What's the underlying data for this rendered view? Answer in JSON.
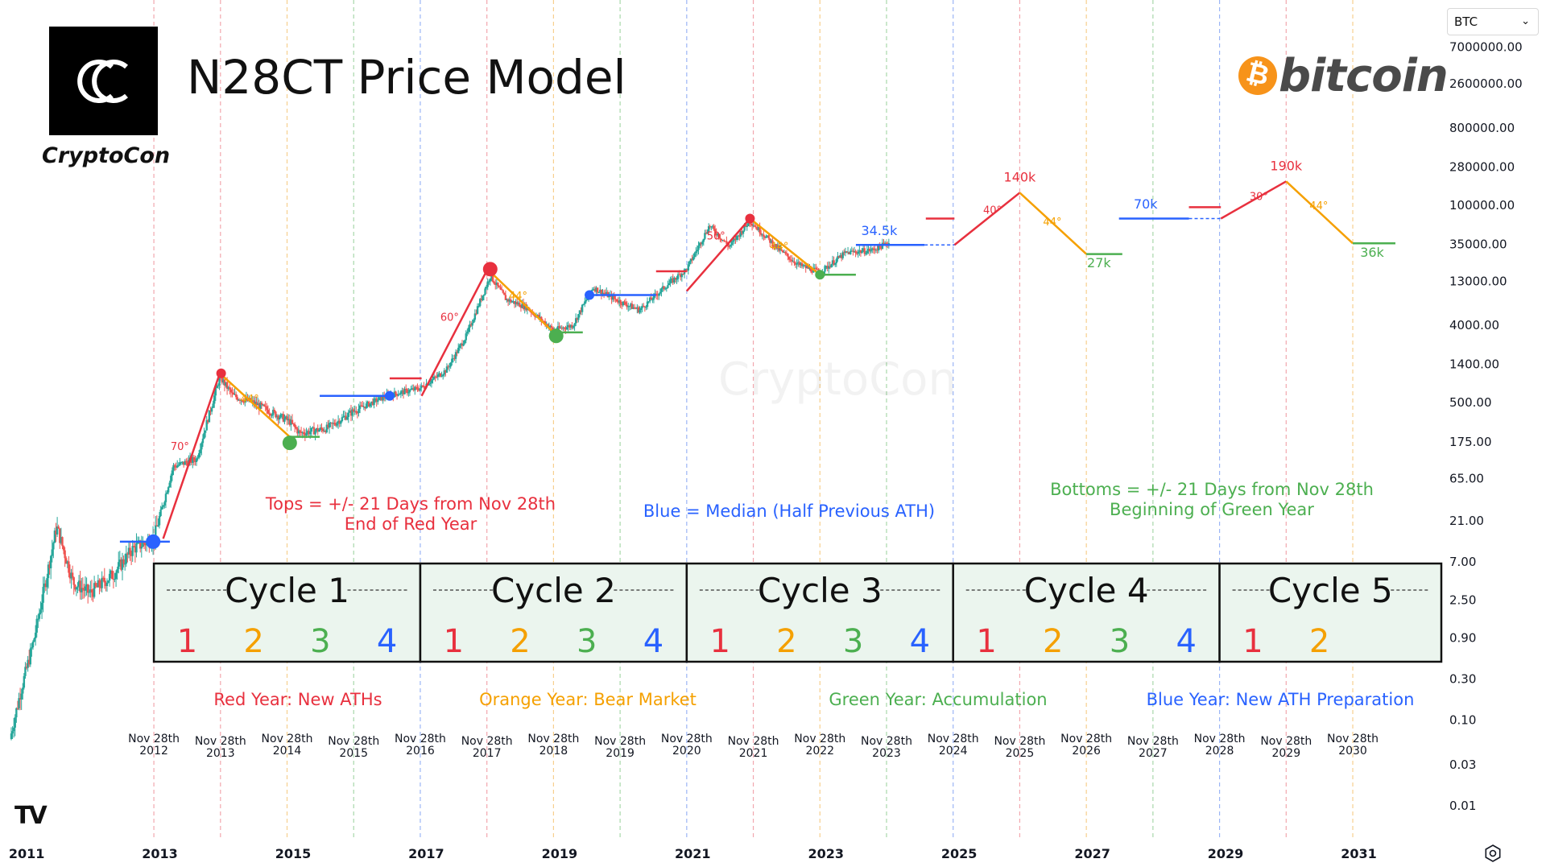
{
  "title": "N28CT Price Model",
  "logo_caption": "CryptoCon",
  "brand_word": "bitcoin",
  "watermark": "CryptoCon",
  "symbol": "BTC",
  "colors": {
    "red": "#e8303e",
    "orange": "#f5a000",
    "green": "#4caf50",
    "blue": "#2962ff",
    "candle_up": "#26a69a",
    "candle_down": "#ef5350",
    "box_fill": "#ebf5ee",
    "vline_red": "#f2a7ae",
    "vline_orange": "#f7cf8e",
    "vline_green": "#a8d8aa",
    "vline_blue": "#9bb5f5"
  },
  "notes": {
    "tops": [
      "Tops = +/- 21 Days from Nov 28th",
      "End of Red Year"
    ],
    "median": "Blue = Median (Half Previous ATH)",
    "bottoms": [
      "Bottoms = +/- 21 Days from Nov 28th",
      "Beginning of Green Year"
    ],
    "red_year": "Red Year: New ATHs",
    "orange_year": "Orange Year: Bear Market",
    "green_year": "Green Year: Accumulation",
    "blue_year": "Blue Year: New ATH Preparation"
  },
  "cycles": [
    {
      "label": "Cycle 1",
      "years": [
        "1",
        "2",
        "3",
        "4"
      ]
    },
    {
      "label": "Cycle 2",
      "years": [
        "1",
        "2",
        "3",
        "4"
      ]
    },
    {
      "label": "Cycle 3",
      "years": [
        "1",
        "2",
        "3",
        "4"
      ]
    },
    {
      "label": "Cycle 4",
      "years": [
        "1",
        "2",
        "3",
        "4"
      ]
    },
    {
      "label": "Cycle 5",
      "years": [
        "1",
        "2"
      ]
    }
  ],
  "chart_data": {
    "type": "candlestick",
    "y_scale": "log",
    "price_axis_ticks": [
      "7000000.00",
      "2600000.00",
      "800000.00",
      "280000.00",
      "100000.00",
      "35000.00",
      "13000.00",
      "4000.00",
      "1400.00",
      "500.00",
      "175.00",
      "65.00",
      "21.00",
      "7.00",
      "2.50",
      "0.90",
      "0.30",
      "0.10",
      "0.03",
      "0.01"
    ],
    "price_axis_values": [
      7000000,
      2600000,
      800000,
      280000,
      100000,
      35000,
      13000,
      4000,
      1400,
      500,
      175,
      65,
      21,
      7,
      2.5,
      0.9,
      0.3,
      0.1,
      0.03,
      0.01
    ],
    "x_axis_ticks": [
      "2011",
      "2013",
      "2015",
      "2017",
      "2019",
      "2021",
      "2023",
      "2025",
      "2027",
      "2029",
      "2031"
    ],
    "x_axis_years": [
      2011,
      2013,
      2015,
      2017,
      2019,
      2021,
      2023,
      2025,
      2027,
      2029,
      2031
    ],
    "x_range": [
      2010.6,
      2032.3
    ],
    "nov28_markers": [
      {
        "line1": "Nov 28th",
        "line2": "2012",
        "x": 2012.91,
        "color": "red"
      },
      {
        "line1": "Nov 28th",
        "line2": "2013",
        "x": 2013.91,
        "color": "red"
      },
      {
        "line1": "Nov 28th",
        "line2": "2014",
        "x": 2014.91,
        "color": "orange"
      },
      {
        "line1": "Nov 28th",
        "line2": "2015",
        "x": 2015.91,
        "color": "green"
      },
      {
        "line1": "Nov 28th",
        "line2": "2016",
        "x": 2016.91,
        "color": "blue"
      },
      {
        "line1": "Nov 28th",
        "line2": "2017",
        "x": 2017.91,
        "color": "red"
      },
      {
        "line1": "Nov 28th",
        "line2": "2018",
        "x": 2018.91,
        "color": "orange"
      },
      {
        "line1": "Nov 28th",
        "line2": "2019",
        "x": 2019.91,
        "color": "green"
      },
      {
        "line1": "Nov 28th",
        "line2": "2020",
        "x": 2020.91,
        "color": "blue"
      },
      {
        "line1": "Nov 28th",
        "line2": "2021",
        "x": 2021.91,
        "color": "red"
      },
      {
        "line1": "Nov 28th",
        "line2": "2022",
        "x": 2022.91,
        "color": "orange"
      },
      {
        "line1": "Nov 28th",
        "line2": "2023",
        "x": 2023.91,
        "color": "green"
      },
      {
        "line1": "Nov 28th",
        "line2": "2024",
        "x": 2024.91,
        "color": "blue"
      },
      {
        "line1": "Nov 28th",
        "line2": "2025",
        "x": 2025.91,
        "color": "red"
      },
      {
        "line1": "Nov 28th",
        "line2": "2026",
        "x": 2026.91,
        "color": "orange"
      },
      {
        "line1": "Nov 28th",
        "line2": "2027",
        "x": 2027.91,
        "color": "green"
      },
      {
        "line1": "Nov 28th",
        "line2": "2028",
        "x": 2028.91,
        "color": "blue"
      },
      {
        "line1": "Nov 28th",
        "line2": "2029",
        "x": 2029.91,
        "color": "red"
      },
      {
        "line1": "Nov 28th",
        "line2": "2030",
        "x": 2030.91,
        "color": "orange"
      }
    ],
    "price_path": [
      [
        2010.75,
        0.06
      ],
      [
        2010.9,
        0.2
      ],
      [
        2011.1,
        0.8
      ],
      [
        2011.45,
        18
      ],
      [
        2011.7,
        4
      ],
      [
        2011.95,
        3
      ],
      [
        2012.3,
        5
      ],
      [
        2012.6,
        10
      ],
      [
        2012.91,
        13
      ],
      [
        2013.2,
        90
      ],
      [
        2013.55,
        110
      ],
      [
        2013.9,
        1000
      ],
      [
        2014.1,
        600
      ],
      [
        2014.4,
        500
      ],
      [
        2014.7,
        380
      ],
      [
        2014.95,
        300
      ],
      [
        2015.1,
        220
      ],
      [
        2015.5,
        250
      ],
      [
        2015.91,
        400
      ],
      [
        2016.4,
        600
      ],
      [
        2016.91,
        740
      ],
      [
        2017.3,
        1200
      ],
      [
        2017.6,
        3000
      ],
      [
        2017.96,
        15000
      ],
      [
        2018.2,
        8000
      ],
      [
        2018.5,
        6500
      ],
      [
        2018.91,
        3500
      ],
      [
        2019.2,
        4000
      ],
      [
        2019.5,
        11000
      ],
      [
        2019.91,
        7500
      ],
      [
        2020.2,
        6000
      ],
      [
        2020.6,
        11500
      ],
      [
        2020.91,
        18000
      ],
      [
        2021.25,
        58000
      ],
      [
        2021.55,
        33000
      ],
      [
        2021.86,
        66000
      ],
      [
        2022.3,
        30000
      ],
      [
        2022.6,
        20000
      ],
      [
        2022.91,
        16500
      ],
      [
        2023.3,
        28000
      ],
      [
        2023.7,
        30000
      ],
      [
        2023.95,
        37000
      ]
    ],
    "model_segments": [
      {
        "color": "blue",
        "x": [
          2012.4,
          2013.15
        ],
        "y": [
          12,
          12
        ]
      },
      {
        "color": "red",
        "x": [
          2013.05,
          2013.9
        ],
        "y": [
          13,
          1100
        ]
      },
      {
        "color": "orange",
        "x": [
          2013.9,
          2014.95
        ],
        "y": [
          1100,
          200
        ]
      },
      {
        "color": "green",
        "x": [
          2014.95,
          2015.4
        ],
        "y": [
          200,
          200
        ]
      },
      {
        "color": "blue",
        "x": [
          2015.4,
          2016.4
        ],
        "y": [
          600,
          600
        ]
      },
      {
        "color": "red",
        "x": [
          2016.45,
          2016.93
        ],
        "y": [
          960,
          960
        ]
      },
      {
        "color": "red",
        "x": [
          2016.93,
          2017.92
        ],
        "y": [
          600,
          18000
        ]
      },
      {
        "color": "orange",
        "x": [
          2017.92,
          2018.91
        ],
        "y": [
          18000,
          3300
        ]
      },
      {
        "color": "green",
        "x": [
          2018.91,
          2019.35
        ],
        "y": [
          3300,
          3300
        ]
      },
      {
        "color": "blue",
        "x": [
          2019.45,
          2020.45
        ],
        "y": [
          9000,
          9000
        ]
      },
      {
        "color": "red",
        "x": [
          2020.45,
          2020.91
        ],
        "y": [
          17000,
          17000
        ]
      },
      {
        "color": "red",
        "x": [
          2020.91,
          2021.86
        ],
        "y": [
          10000,
          70000
        ]
      },
      {
        "color": "orange",
        "x": [
          2021.86,
          2022.91
        ],
        "y": [
          70000,
          15500
        ]
      },
      {
        "color": "green",
        "x": [
          2022.91,
          2023.45
        ],
        "y": [
          15500,
          15500
        ]
      },
      {
        "color": "blue",
        "x": [
          2023.45,
          2024.48
        ],
        "y": [
          34500,
          34500
        ]
      },
      {
        "color": "red",
        "x": [
          2024.5,
          2024.93
        ],
        "y": [
          70000,
          70000
        ]
      },
      {
        "color": "red",
        "x": [
          2024.93,
          2025.91
        ],
        "y": [
          34500,
          140000
        ]
      },
      {
        "color": "orange",
        "x": [
          2025.91,
          2026.91
        ],
        "y": [
          140000,
          27000
        ]
      },
      {
        "color": "green",
        "x": [
          2026.91,
          2027.45
        ],
        "y": [
          27000,
          27000
        ]
      },
      {
        "color": "blue",
        "x": [
          2027.4,
          2028.45
        ],
        "y": [
          70000,
          70000
        ]
      },
      {
        "color": "red",
        "x": [
          2028.45,
          2028.93
        ],
        "y": [
          95000,
          95000
        ]
      },
      {
        "color": "red",
        "x": [
          2028.93,
          2029.91
        ],
        "y": [
          70000,
          190000
        ]
      },
      {
        "color": "orange",
        "x": [
          2029.91,
          2030.91
        ],
        "y": [
          190000,
          36000
        ]
      },
      {
        "color": "green",
        "x": [
          2030.91,
          2031.55
        ],
        "y": [
          36000,
          36000
        ]
      }
    ],
    "markers": [
      {
        "color": "blue",
        "x": 2012.9,
        "y": 12,
        "big": true
      },
      {
        "color": "red",
        "x": 2013.92,
        "y": 1100,
        "big": false
      },
      {
        "color": "green",
        "x": 2014.95,
        "y": 170,
        "big": true
      },
      {
        "color": "blue",
        "x": 2016.45,
        "y": 600,
        "big": false
      },
      {
        "color": "red",
        "x": 2017.96,
        "y": 18000,
        "big": true
      },
      {
        "color": "green",
        "x": 2018.95,
        "y": 3000,
        "big": true
      },
      {
        "color": "blue",
        "x": 2019.45,
        "y": 9000,
        "big": false
      },
      {
        "color": "red",
        "x": 2021.86,
        "y": 70000,
        "big": false
      },
      {
        "color": "green",
        "x": 2022.91,
        "y": 15500,
        "big": false
      }
    ],
    "angle_labels": [
      {
        "text": "70°",
        "x": 2013.3,
        "y": 140,
        "color": "red"
      },
      {
        "text": "44°",
        "x": 2014.35,
        "y": 500,
        "color": "orange"
      },
      {
        "text": "60°",
        "x": 2017.35,
        "y": 4500,
        "color": "red"
      },
      {
        "text": "44°",
        "x": 2018.38,
        "y": 8000,
        "color": "orange"
      },
      {
        "text": "50°",
        "x": 2021.35,
        "y": 40000,
        "color": "red"
      },
      {
        "text": "44°",
        "x": 2022.3,
        "y": 30000,
        "color": "orange"
      },
      {
        "text": "40°",
        "x": 2025.5,
        "y": 80000,
        "color": "red"
      },
      {
        "text": "44°",
        "x": 2026.4,
        "y": 58000,
        "color": "orange"
      },
      {
        "text": "30°",
        "x": 2029.5,
        "y": 115000,
        "color": "red"
      },
      {
        "text": "44°",
        "x": 2030.4,
        "y": 90000,
        "color": "orange"
      }
    ],
    "value_labels": [
      {
        "text": "34.5k",
        "x": 2023.8,
        "y": 45000,
        "color": "blue"
      },
      {
        "text": "140k",
        "x": 2025.91,
        "y": 190000,
        "color": "red"
      },
      {
        "text": "27k",
        "x": 2027.1,
        "y": 19000,
        "color": "green"
      },
      {
        "text": "70k",
        "x": 2027.8,
        "y": 92000,
        "color": "blue"
      },
      {
        "text": "190k",
        "x": 2029.91,
        "y": 255000,
        "color": "red"
      },
      {
        "text": "36k",
        "x": 2031.2,
        "y": 25000,
        "color": "green"
      }
    ]
  }
}
